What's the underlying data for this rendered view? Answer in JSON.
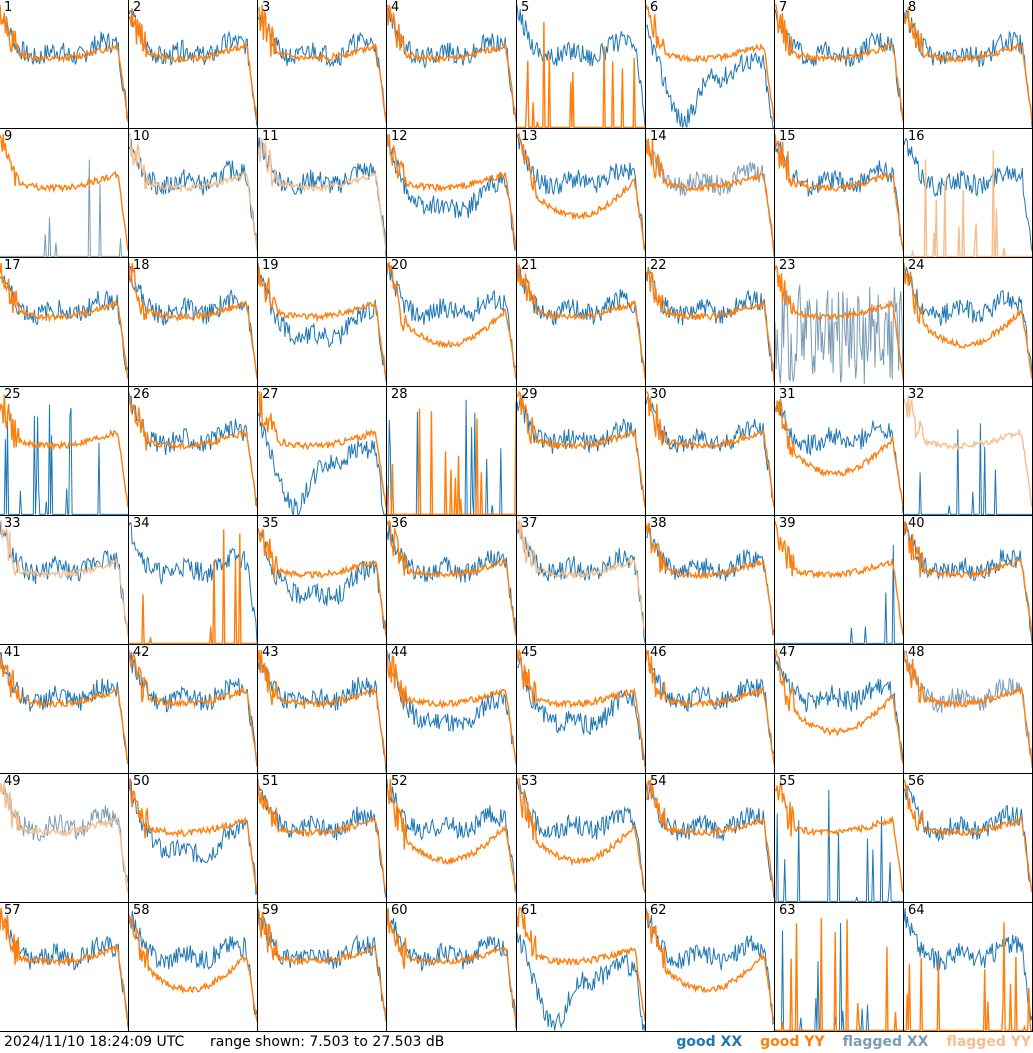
{
  "footer": {
    "timestamp": "2024/11/10 18:24:09 UTC",
    "range_label": "range shown: 7.503 to 27.503 dB"
  },
  "legend": {
    "good_xx": "good XX",
    "good_yy": "good YY",
    "flagged_xx": "flagged XX",
    "flagged_yy": "flagged YY"
  },
  "colors": {
    "good_xx": "#1f77b4",
    "good_yy": "#ff7f0e",
    "flagged_xx": "#7a9cb5",
    "flagged_yy": "#f5bf90"
  },
  "chart_data": {
    "type": "line",
    "grid_layout": "8x8 small multiples",
    "ylim_db": [
      7.503,
      27.503
    ],
    "x_axis": "frequency channel",
    "series_names": [
      "good XX",
      "good YY",
      "flagged XX",
      "flagged YY"
    ],
    "panels": [
      {
        "id": "1",
        "xx": "good",
        "yy": "good",
        "shape": "normal"
      },
      {
        "id": "2",
        "xx": "good",
        "yy": "good",
        "shape": "normal"
      },
      {
        "id": "3",
        "xx": "good",
        "yy": "good",
        "shape": "normal"
      },
      {
        "id": "4",
        "xx": "good",
        "yy": "good",
        "shape": "normal"
      },
      {
        "id": "5",
        "xx": "good",
        "yy": "good",
        "shape": "yy_dead"
      },
      {
        "id": "6",
        "xx": "good",
        "yy": "good",
        "shape": "xx_dip"
      },
      {
        "id": "7",
        "xx": "good",
        "yy": "good",
        "shape": "normal"
      },
      {
        "id": "8",
        "xx": "good",
        "yy": "good",
        "shape": "normal"
      },
      {
        "id": "9",
        "xx": "flagged",
        "yy": "good",
        "shape": "xx_dead"
      },
      {
        "id": "10",
        "xx": "good",
        "yy": "flagged",
        "shape": "normal"
      },
      {
        "id": "11",
        "xx": "good",
        "yy": "flagged",
        "shape": "normal"
      },
      {
        "id": "12",
        "xx": "good",
        "yy": "good",
        "shape": "xx_low"
      },
      {
        "id": "13",
        "xx": "good",
        "yy": "good",
        "shape": "yy_low"
      },
      {
        "id": "14",
        "xx": "flagged",
        "yy": "good",
        "shape": "normal"
      },
      {
        "id": "15",
        "xx": "good",
        "yy": "good",
        "shape": "normal"
      },
      {
        "id": "16",
        "xx": "good",
        "yy": "flagged",
        "shape": "yy_dead"
      },
      {
        "id": "17",
        "xx": "good",
        "yy": "good",
        "shape": "normal"
      },
      {
        "id": "18",
        "xx": "good",
        "yy": "good",
        "shape": "normal"
      },
      {
        "id": "19",
        "xx": "good",
        "yy": "good",
        "shape": "xx_low"
      },
      {
        "id": "20",
        "xx": "good",
        "yy": "good",
        "shape": "yy_low"
      },
      {
        "id": "21",
        "xx": "good",
        "yy": "good",
        "shape": "normal"
      },
      {
        "id": "22",
        "xx": "good",
        "yy": "good",
        "shape": "normal"
      },
      {
        "id": "23",
        "xx": "flagged",
        "yy": "good",
        "shape": "xx_noisy"
      },
      {
        "id": "24",
        "xx": "good",
        "yy": "good",
        "shape": "yy_low"
      },
      {
        "id": "25",
        "xx": "good",
        "yy": "good",
        "shape": "xx_dead"
      },
      {
        "id": "26",
        "xx": "good",
        "yy": "good",
        "shape": "normal"
      },
      {
        "id": "27",
        "xx": "good",
        "yy": "good",
        "shape": "xx_dip"
      },
      {
        "id": "28",
        "xx": "good",
        "yy": "good",
        "shape": "both_dead"
      },
      {
        "id": "29",
        "xx": "good",
        "yy": "good",
        "shape": "normal"
      },
      {
        "id": "30",
        "xx": "good",
        "yy": "good",
        "shape": "normal"
      },
      {
        "id": "31",
        "xx": "good",
        "yy": "good",
        "shape": "yy_low"
      },
      {
        "id": "32",
        "xx": "good",
        "yy": "flagged",
        "shape": "xx_dead"
      },
      {
        "id": "33",
        "xx": "good",
        "yy": "flagged",
        "shape": "normal"
      },
      {
        "id": "34",
        "xx": "good",
        "yy": "good",
        "shape": "yy_dead"
      },
      {
        "id": "35",
        "xx": "good",
        "yy": "good",
        "shape": "xx_low"
      },
      {
        "id": "36",
        "xx": "good",
        "yy": "good",
        "shape": "normal"
      },
      {
        "id": "37",
        "xx": "good",
        "yy": "flagged",
        "shape": "normal"
      },
      {
        "id": "38",
        "xx": "good",
        "yy": "good",
        "shape": "normal"
      },
      {
        "id": "39",
        "xx": "good",
        "yy": "good",
        "shape": "xx_dead"
      },
      {
        "id": "40",
        "xx": "good",
        "yy": "good",
        "shape": "normal"
      },
      {
        "id": "41",
        "xx": "good",
        "yy": "good",
        "shape": "normal"
      },
      {
        "id": "42",
        "xx": "good",
        "yy": "good",
        "shape": "normal"
      },
      {
        "id": "43",
        "xx": "good",
        "yy": "good",
        "shape": "normal"
      },
      {
        "id": "44",
        "xx": "good",
        "yy": "good",
        "shape": "xx_low"
      },
      {
        "id": "45",
        "xx": "good",
        "yy": "good",
        "shape": "xx_low"
      },
      {
        "id": "46",
        "xx": "good",
        "yy": "good",
        "shape": "normal"
      },
      {
        "id": "47",
        "xx": "good",
        "yy": "good",
        "shape": "yy_low"
      },
      {
        "id": "48",
        "xx": "flagged",
        "yy": "good",
        "shape": "normal"
      },
      {
        "id": "49",
        "xx": "flagged",
        "yy": "flagged",
        "shape": "normal"
      },
      {
        "id": "50",
        "xx": "good",
        "yy": "good",
        "shape": "xx_low"
      },
      {
        "id": "51",
        "xx": "good",
        "yy": "good",
        "shape": "normal"
      },
      {
        "id": "52",
        "xx": "good",
        "yy": "good",
        "shape": "yy_low"
      },
      {
        "id": "53",
        "xx": "good",
        "yy": "good",
        "shape": "yy_low"
      },
      {
        "id": "54",
        "xx": "good",
        "yy": "good",
        "shape": "normal"
      },
      {
        "id": "55",
        "xx": "good",
        "yy": "good",
        "shape": "xx_dead"
      },
      {
        "id": "56",
        "xx": "good",
        "yy": "good",
        "shape": "normal"
      },
      {
        "id": "57",
        "xx": "good",
        "yy": "good",
        "shape": "normal"
      },
      {
        "id": "58",
        "xx": "good",
        "yy": "good",
        "shape": "yy_low"
      },
      {
        "id": "59",
        "xx": "good",
        "yy": "good",
        "shape": "normal"
      },
      {
        "id": "60",
        "xx": "good",
        "yy": "good",
        "shape": "normal"
      },
      {
        "id": "61",
        "xx": "good",
        "yy": "good",
        "shape": "xx_dip"
      },
      {
        "id": "62",
        "xx": "good",
        "yy": "good",
        "shape": "yy_low"
      },
      {
        "id": "63",
        "xx": "good",
        "yy": "good",
        "shape": "both_dead"
      },
      {
        "id": "64",
        "xx": "good",
        "yy": "good",
        "shape": "yy_dead"
      }
    ]
  }
}
